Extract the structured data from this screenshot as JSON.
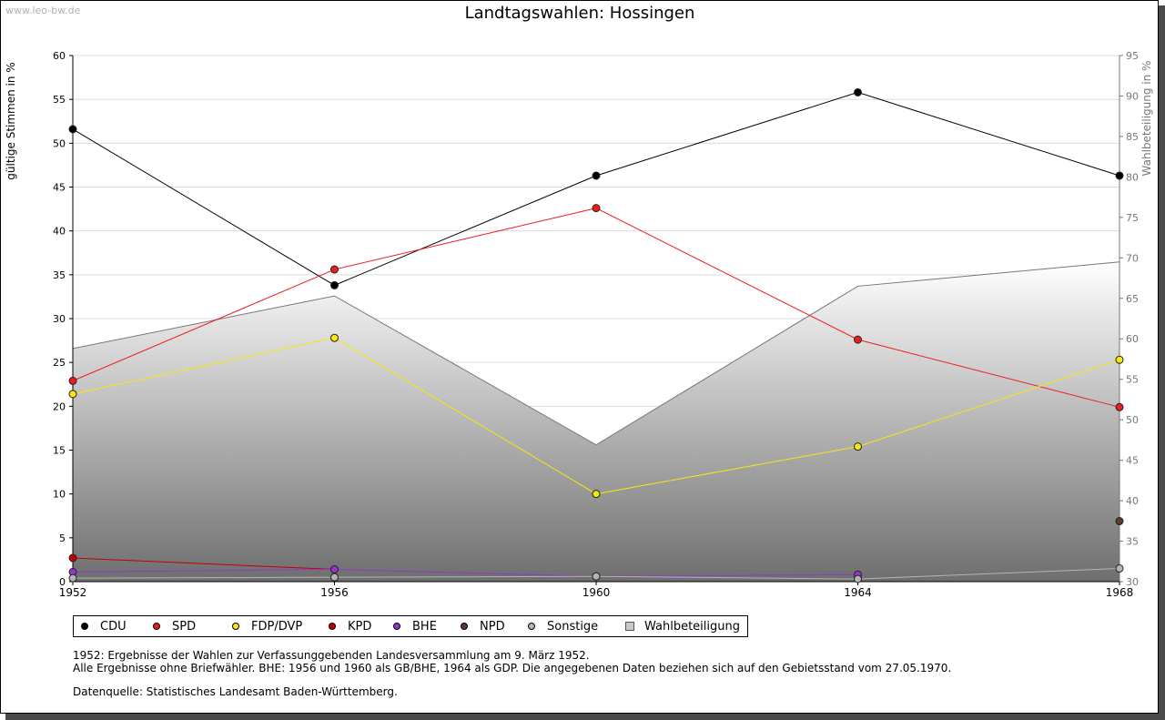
{
  "watermark": "www.leo-bw.de",
  "notes": [
    "1952: Ergebnisse der Wahlen zur Verfassunggebenden Landesversammlung am 9. März 1952.",
    "Alle Ergebnisse ohne Briefwähler. BHE: 1956 und 1960 als GB/BHE, 1964 als GDP. Die angegebenen Daten beziehen sich auf den Gebietsstand vom 27.05.1970.",
    "Datenquelle: Statistisches Landesamt Baden-Württemberg."
  ],
  "chart_data": {
    "type": "line",
    "title": "Landtagswahlen: Hossingen",
    "ylabel": "gültige Stimmen in %",
    "y2label": "Wahlbeteiligung in %",
    "x": [
      1952,
      1956,
      1960,
      1964,
      1968
    ],
    "ylim": [
      0,
      60
    ],
    "y2lim": [
      30,
      95
    ],
    "yticks": [
      0,
      5,
      10,
      15,
      20,
      25,
      30,
      35,
      40,
      45,
      50,
      55,
      60
    ],
    "y2ticks": [
      30,
      35,
      40,
      45,
      50,
      55,
      60,
      65,
      70,
      75,
      80,
      85,
      90,
      95
    ],
    "grid": true,
    "legend_position": "bottom-left",
    "series": [
      {
        "name": "CDU",
        "color": "#000000",
        "values": [
          51.6,
          33.8,
          46.3,
          55.8,
          46.3
        ]
      },
      {
        "name": "SPD",
        "color": "#ee1c1c",
        "values": [
          22.9,
          35.6,
          42.6,
          27.6,
          19.9
        ]
      },
      {
        "name": "FDP/DVP",
        "color": "#f5e614",
        "values": [
          21.4,
          27.8,
          10.0,
          15.4,
          25.3
        ]
      },
      {
        "name": "KPD",
        "color": "#c40000",
        "values": [
          2.7,
          1.4,
          null,
          null,
          null
        ]
      },
      {
        "name": "BHE",
        "color": "#9933cc",
        "values": [
          1.1,
          1.4,
          0.6,
          0.8,
          null
        ]
      },
      {
        "name": "NPD",
        "color": "#5c3c28",
        "values": [
          null,
          null,
          null,
          null,
          6.9
        ]
      },
      {
        "name": "Sonstige",
        "color": "#b4b4b4",
        "values": [
          0.4,
          0.5,
          0.6,
          0.3,
          1.5
        ]
      }
    ],
    "turnout": {
      "name": "Wahlbeteiligung",
      "color": "#999999",
      "values": [
        58.8,
        65.3,
        46.9,
        66.5,
        69.5
      ]
    }
  }
}
